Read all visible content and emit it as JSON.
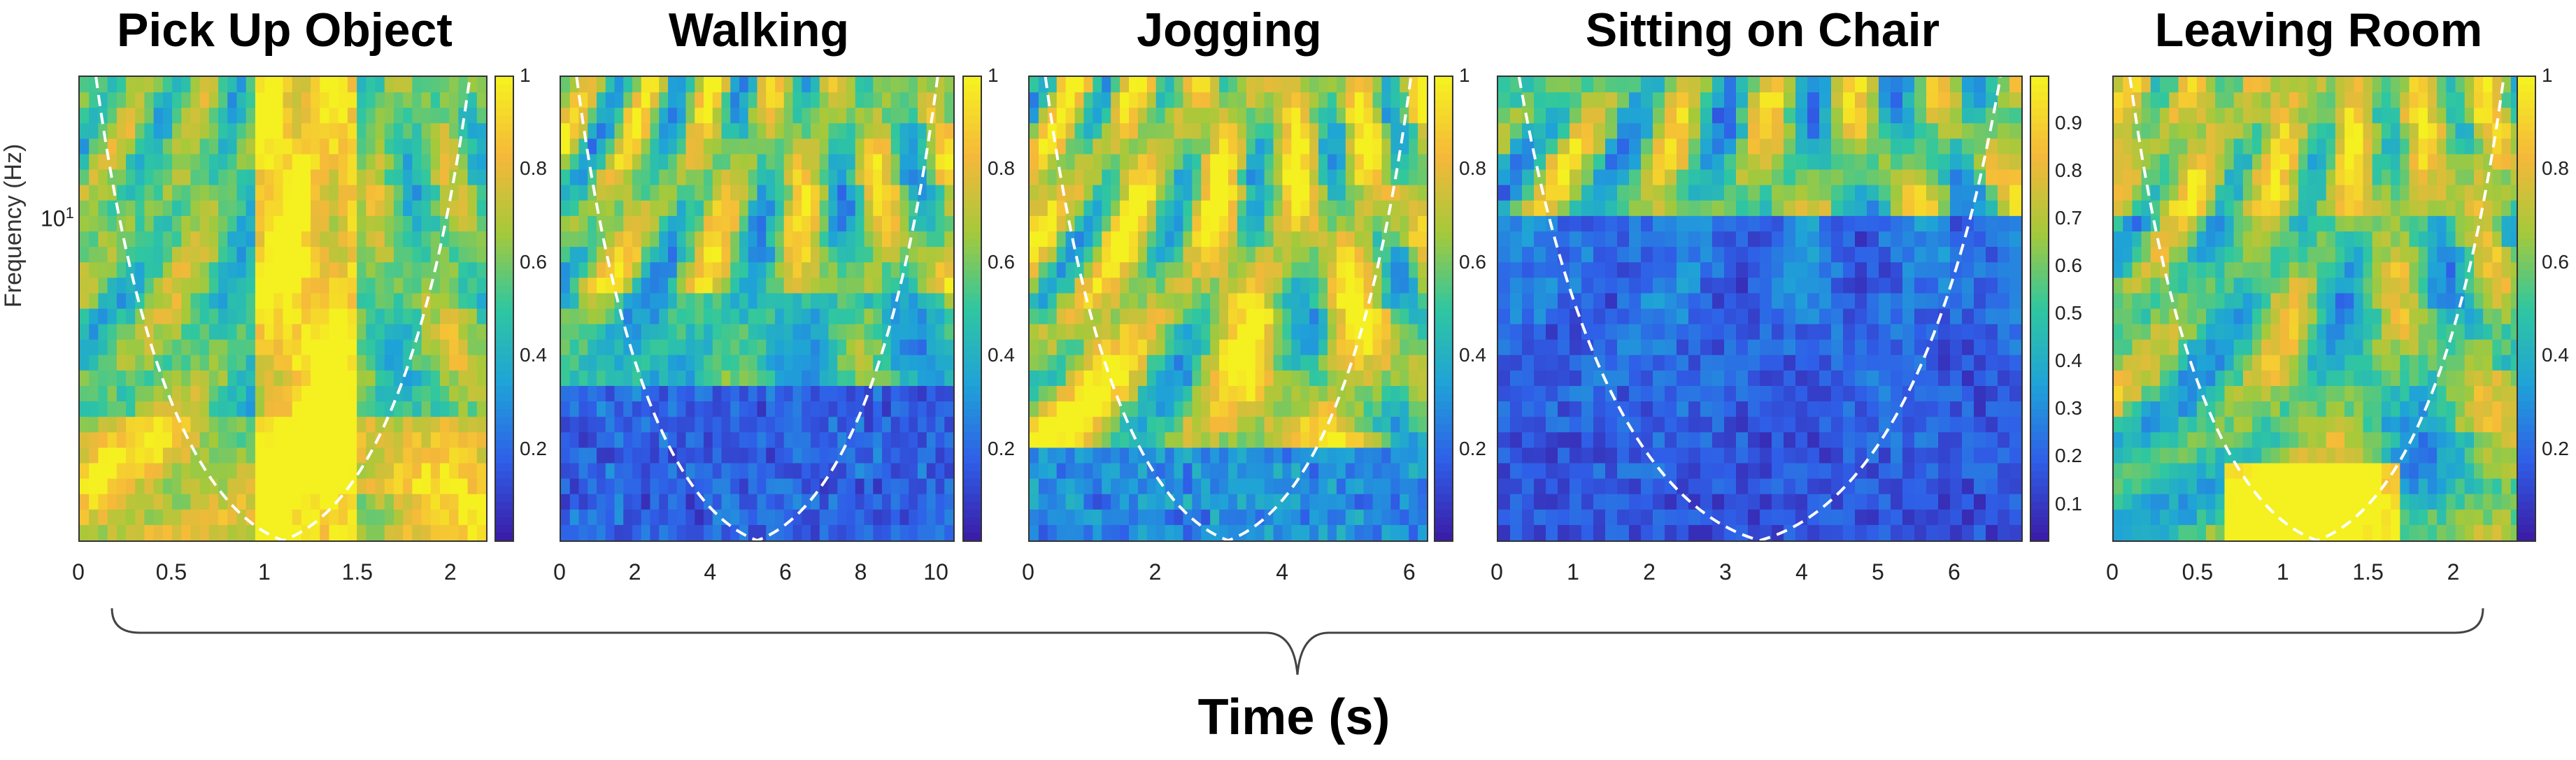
{
  "figure": {
    "global_xlabel": "Time (s)",
    "ylabel": "Frequency (Hz)",
    "y_tick_base": "10",
    "y_tick_exp": "1",
    "colormap": [
      "#3a1ea8",
      "#2f5fe8",
      "#1fa2d8",
      "#2fc7a0",
      "#a6c93a",
      "#f5b83a",
      "#f5f020"
    ]
  },
  "chart_data": [
    {
      "type": "heatmap",
      "title": "Pick Up Object",
      "xlabel": "Time (s)",
      "ylabel": "Frequency (Hz)",
      "x_ticks": [
        "0",
        "0.5",
        "1",
        "1.5",
        "2"
      ],
      "x_tick_values": [
        0,
        0.5,
        1,
        1.5,
        2
      ],
      "xlim": [
        0,
        2.2
      ],
      "y_ticks": [
        "10^1"
      ],
      "colorbar_ticks": [
        "0.2",
        "0.4",
        "0.6",
        "0.8",
        "1"
      ],
      "colorbar_values": [
        0.2,
        0.4,
        0.6,
        0.8,
        1
      ],
      "colorbar_range": [
        0,
        1
      ],
      "cone_of_influence": "dashed white",
      "seed": 11
    },
    {
      "type": "heatmap",
      "title": "Walking",
      "xlabel": "Time (s)",
      "x_ticks": [
        "0",
        "2",
        "4",
        "6",
        "8",
        "10"
      ],
      "x_tick_values": [
        0,
        2,
        4,
        6,
        8,
        10
      ],
      "xlim": [
        0,
        10.5
      ],
      "colorbar_ticks": [
        "0.2",
        "0.4",
        "0.6",
        "0.8",
        "1"
      ],
      "colorbar_values": [
        0.2,
        0.4,
        0.6,
        0.8,
        1
      ],
      "colorbar_range": [
        0,
        1
      ],
      "cone_of_influence": "dashed white",
      "seed": 23
    },
    {
      "type": "heatmap",
      "title": "Jogging",
      "xlabel": "Time (s)",
      "x_ticks": [
        "0",
        "2",
        "4",
        "6"
      ],
      "x_tick_values": [
        0,
        2,
        4,
        6
      ],
      "xlim": [
        0,
        6.3
      ],
      "colorbar_ticks": [
        "0.2",
        "0.4",
        "0.6",
        "0.8",
        "1"
      ],
      "colorbar_values": [
        0.2,
        0.4,
        0.6,
        0.8,
        1
      ],
      "colorbar_range": [
        0,
        1
      ],
      "cone_of_influence": "dashed white",
      "seed": 37
    },
    {
      "type": "heatmap",
      "title": "Sitting on Chair",
      "xlabel": "Time (s)",
      "x_ticks": [
        "0",
        "1",
        "2",
        "3",
        "4",
        "5",
        "6"
      ],
      "x_tick_values": [
        0,
        1,
        2,
        3,
        4,
        5,
        6
      ],
      "xlim": [
        0,
        6.9
      ],
      "colorbar_ticks": [
        "0.1",
        "0.2",
        "0.3",
        "0.4",
        "0.5",
        "0.6",
        "0.7",
        "0.8",
        "0.9"
      ],
      "colorbar_values": [
        0.1,
        0.2,
        0.3,
        0.4,
        0.5,
        0.6,
        0.7,
        0.8,
        0.9
      ],
      "colorbar_range": [
        0.02,
        1
      ],
      "cone_of_influence": "dashed white",
      "seed": 53
    },
    {
      "type": "heatmap",
      "title": "Leaving Room",
      "xlabel": "Time (s)",
      "x_ticks": [
        "0",
        "0.5",
        "1",
        "1.5",
        "2"
      ],
      "x_tick_values": [
        0,
        0.5,
        1,
        1.5,
        2
      ],
      "xlim": [
        0,
        2.4
      ],
      "colorbar_ticks": [
        "0.2",
        "0.4",
        "0.6",
        "0.8",
        "1"
      ],
      "colorbar_values": [
        0.2,
        0.4,
        0.6,
        0.8,
        1
      ],
      "colorbar_range": [
        0,
        1
      ],
      "cone_of_influence": "dashed white",
      "seed": 71
    }
  ]
}
